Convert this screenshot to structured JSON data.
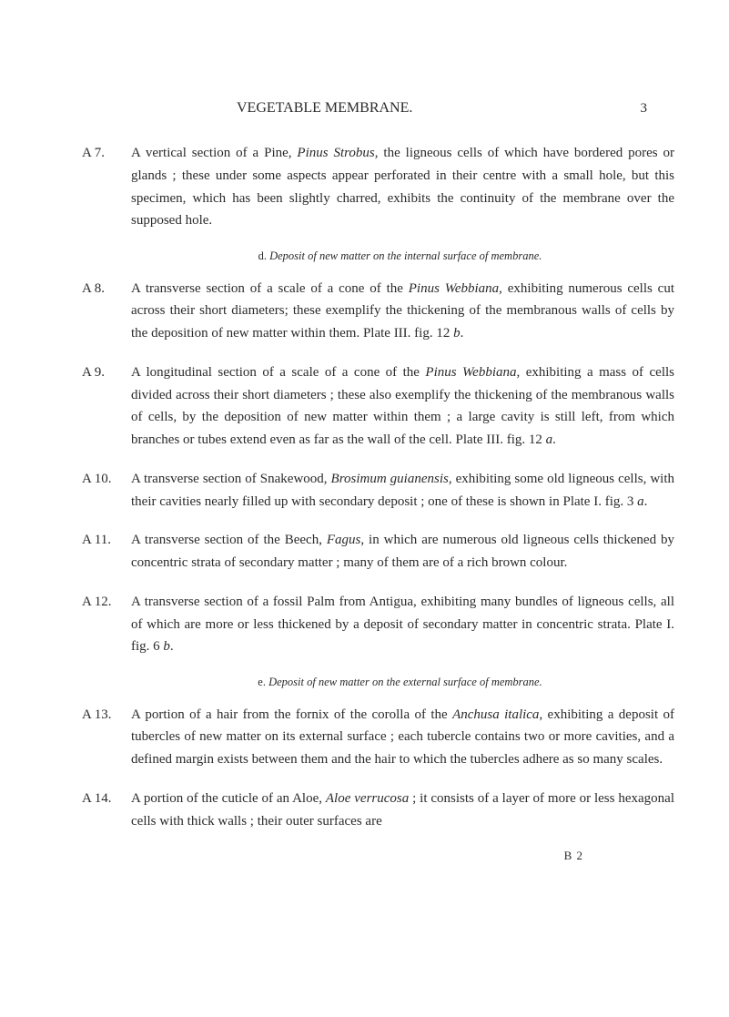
{
  "header": {
    "title": "VEGETABLE MEMBRANE.",
    "page_number": "3"
  },
  "entries": [
    {
      "label": "A 7.",
      "segments": [
        {
          "text": "A vertical section of a Pine, ",
          "italic": false
        },
        {
          "text": "Pinus Strobus",
          "italic": true
        },
        {
          "text": ", the ligneous cells of which have bordered pores or glands ; these under some aspects appear perforated in their centre with a small hole, but this specimen, which has been slightly charred, exhibits the continuity of the membrane over the supposed hole.",
          "italic": false
        }
      ]
    }
  ],
  "subheading_d": {
    "prefix": "d. ",
    "text": "Deposit of new matter on the internal surface of membrane."
  },
  "entries2": [
    {
      "label": "A 8.",
      "segments": [
        {
          "text": "A transverse section of a scale of a cone of the ",
          "italic": false
        },
        {
          "text": "Pinus Webbiana",
          "italic": true
        },
        {
          "text": ", exhibiting numerous cells cut across their short diameters; these exemplify the thickening of the membranous walls of cells by the deposition of new matter within them. Plate III. fig. 12 ",
          "italic": false
        },
        {
          "text": "b",
          "italic": true
        },
        {
          "text": ".",
          "italic": false
        }
      ]
    },
    {
      "label": "A 9.",
      "segments": [
        {
          "text": "A longitudinal section of a scale of a cone of the ",
          "italic": false
        },
        {
          "text": "Pinus Webbiana",
          "italic": true
        },
        {
          "text": ", exhibiting a mass of cells divided across their short diameters ; these also exemplify the thickening of the membranous walls of cells, by the deposition of new matter within them ; a large cavity is still left, from which branches or tubes extend even as far as the wall of the cell. Plate III. fig. 12 ",
          "italic": false
        },
        {
          "text": "a",
          "italic": true
        },
        {
          "text": ".",
          "italic": false
        }
      ]
    },
    {
      "label": "A 10.",
      "segments": [
        {
          "text": "A transverse section of Snakewood, ",
          "italic": false
        },
        {
          "text": "Brosimum guianensis",
          "italic": true
        },
        {
          "text": ", exhibiting some old ligneous cells, with their cavities nearly filled up with secondary deposit ; one of these is shown in Plate I. fig. 3 ",
          "italic": false
        },
        {
          "text": "a",
          "italic": true
        },
        {
          "text": ".",
          "italic": false
        }
      ]
    },
    {
      "label": "A 11.",
      "segments": [
        {
          "text": "A transverse section of the Beech, ",
          "italic": false
        },
        {
          "text": "Fagus",
          "italic": true
        },
        {
          "text": ", in which are numerous old ligneous cells thickened by concentric strata of secondary matter ; many of them are of a rich brown colour.",
          "italic": false
        }
      ]
    },
    {
      "label": "A 12.",
      "segments": [
        {
          "text": "A transverse section of a fossil Palm from Antigua, exhibiting many bundles of ligneous cells, all of which are more or less thickened by a deposit of secondary matter in concentric strata. Plate I. fig. 6 ",
          "italic": false
        },
        {
          "text": "b",
          "italic": true
        },
        {
          "text": ".",
          "italic": false
        }
      ]
    }
  ],
  "subheading_e": {
    "prefix": "e. ",
    "text": "Deposit of new matter on the external surface of membrane."
  },
  "entries3": [
    {
      "label": "A 13.",
      "segments": [
        {
          "text": "A portion of a hair from the fornix of the corolla of the ",
          "italic": false
        },
        {
          "text": "Anchusa italica",
          "italic": true
        },
        {
          "text": ", exhibiting a deposit of tubercles of new matter on its external surface ; each tubercle contains two or more cavities, and a defined margin exists between them and the hair to which the tubercles adhere as so many scales.",
          "italic": false
        }
      ]
    },
    {
      "label": "A 14.",
      "segments": [
        {
          "text": "A portion of the cuticle of an Aloe, ",
          "italic": false
        },
        {
          "text": "Aloe verrucosa",
          "italic": true
        },
        {
          "text": " ; it consists of a layer of more or less hexagonal cells with thick walls ; their outer surfaces are",
          "italic": false
        }
      ]
    }
  ],
  "footer": "B 2"
}
